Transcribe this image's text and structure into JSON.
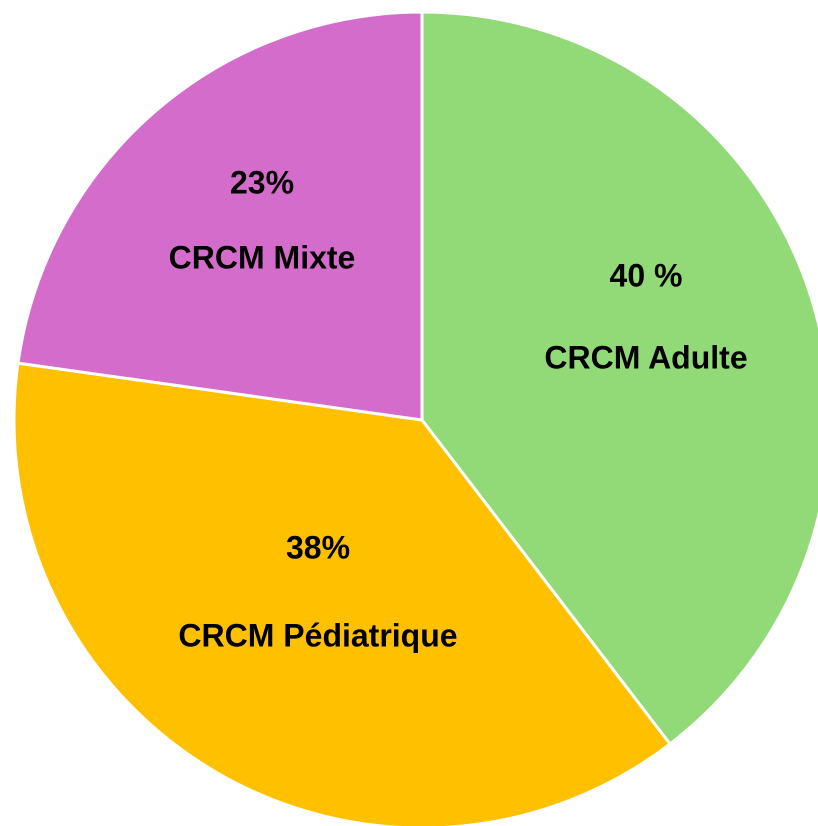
{
  "chart_data": {
    "type": "pie",
    "categories": [
      "CRCM Adulte",
      "CRCM Pédiatrique",
      "CRCM Mixte"
    ],
    "values": [
      40,
      38,
      23
    ],
    "value_labels": [
      "40 %",
      "38%",
      "23%"
    ],
    "colors": [
      "#92d977",
      "#ffc000",
      "#d46ccb"
    ]
  }
}
